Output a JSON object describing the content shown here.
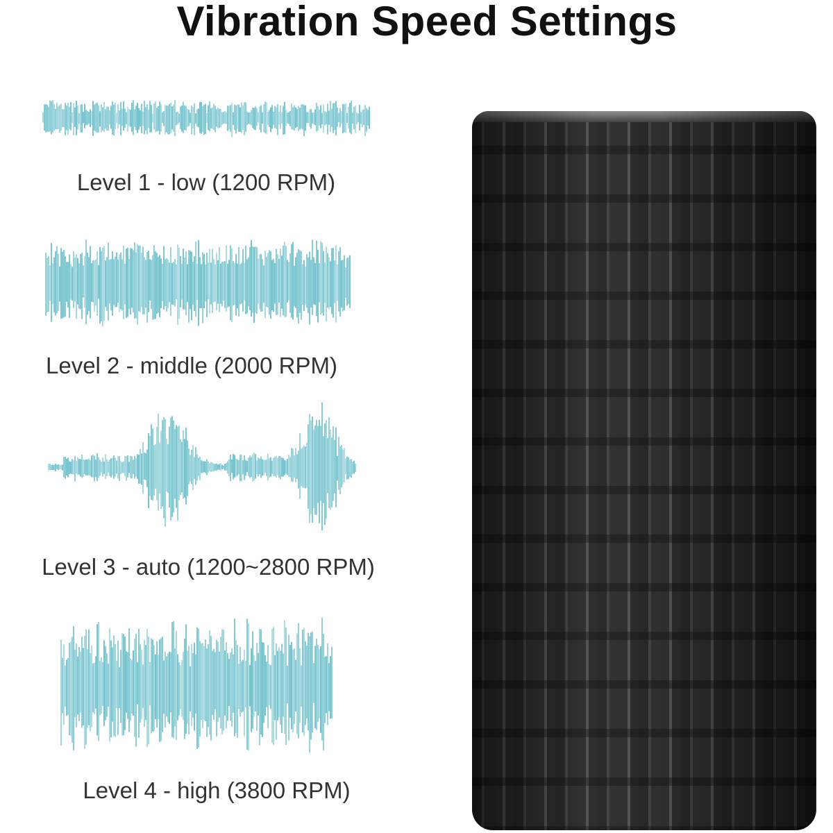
{
  "title": "Vibration Speed Settings",
  "wave_color": "#2aa3b3",
  "levels": [
    {
      "label": "Level 1 - low (1200 RPM)",
      "pattern": "low"
    },
    {
      "label": "Level 2 - middle (2000 RPM)",
      "pattern": "middle"
    },
    {
      "label": "Level 3 - auto (1200~2800 RPM)",
      "pattern": "auto"
    },
    {
      "label": "Level 4 - high (3800 RPM)",
      "pattern": "high"
    }
  ],
  "product": {
    "name-icon": "foam-roller-image",
    "color": "#262626"
  }
}
